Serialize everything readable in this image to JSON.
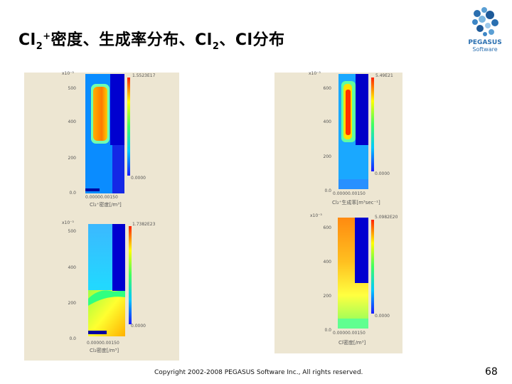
{
  "slide": {
    "title": {
      "t1": "Cl",
      "t1_sub": "2",
      "t1_sup": "+",
      "t2": "密度、生成率分布、Cl",
      "t2_sub": "2",
      "t3": "、Cl分布"
    },
    "logo": {
      "line1": "PEGASUS",
      "line2": "Software"
    },
    "footer": "Copyright 2002-2008 PEGASUS Software Inc., All rights reserved.",
    "page_number": "68"
  },
  "plots": [
    {
      "exp": "x10⁻³",
      "y_ticks": [
        "500",
        "400",
        "200",
        "0.0"
      ],
      "x_ticks": "0.00000.00150",
      "cmax": "1.5523E17",
      "cmin": "0.0000",
      "label": "Cl₂⁺密度[/m³]"
    },
    {
      "exp": "x10⁻³",
      "y_ticks": [
        "600",
        "400",
        "200",
        "0.0"
      ],
      "x_ticks": "0.00000.00150",
      "cmax": "5.49E21",
      "cmin": "0.0000",
      "label": "Cl₂⁺生成率[m³sec⁻¹]"
    },
    {
      "exp": "x10⁻³",
      "y_ticks": [
        "500",
        "400",
        "200",
        "0.0"
      ],
      "x_ticks": "0.00000.00150",
      "cmax": "1.7382E23",
      "cmin": "0.0000",
      "label": "Cl₂密度[/m³]"
    },
    {
      "exp": "x10⁻³",
      "y_ticks": [
        "600",
        "400",
        "200",
        "0.0"
      ],
      "x_ticks": "0.00000.00150",
      "cmax": "5.0982E20",
      "cmin": "0.0000",
      "label": "Cl密度[/m³]"
    }
  ]
}
